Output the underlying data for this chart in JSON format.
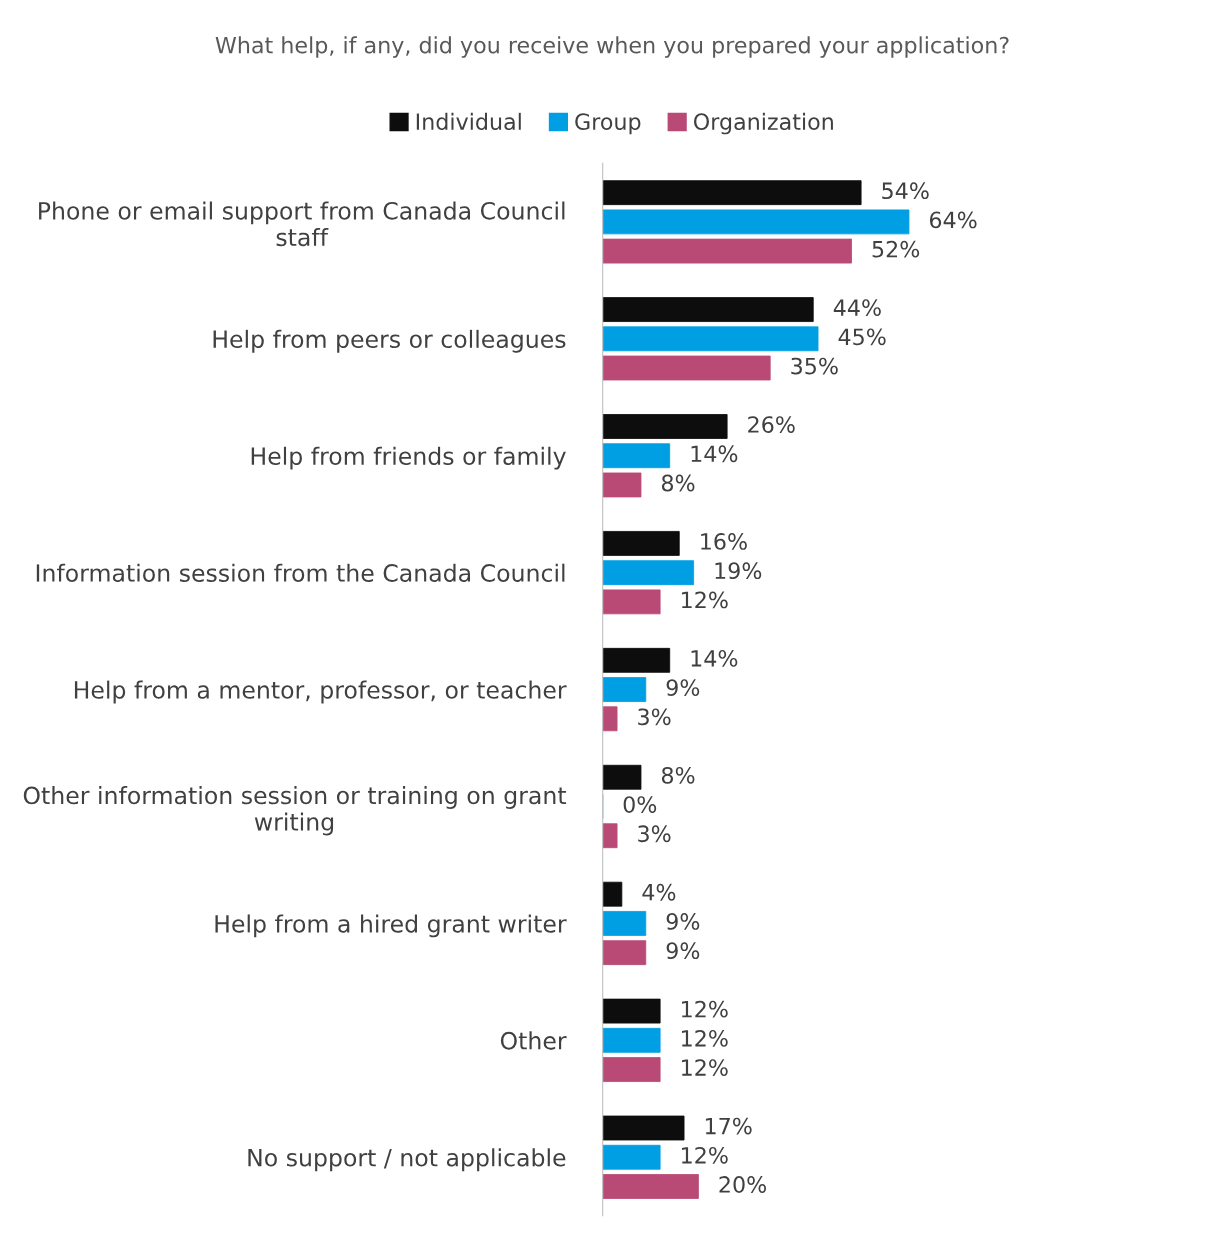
{
  "chart_data": {
    "type": "bar",
    "orientation": "horizontal",
    "title": "What help, if any, did you receive when you prepared your application?",
    "categories": [
      "Phone or email support from Canada Council staff",
      "Help from peers or colleagues",
      "Help from friends or family",
      "Information session from the Canada Council",
      "Help from a mentor, professor, or teacher",
      "Other information session or training on grant writing",
      "Help from a hired grant writer",
      "Other",
      "No support / not applicable"
    ],
    "series": [
      {
        "name": "Individual",
        "color": "#0d0d0d",
        "values": [
          54,
          44,
          26,
          16,
          14,
          8,
          4,
          12,
          17
        ],
        "value_labels": [
          "54%",
          "44%",
          "26%",
          "16%",
          "14%",
          "8%",
          "4%",
          "12%",
          "17%"
        ]
      },
      {
        "name": "Group",
        "color": "#009fe3",
        "values": [
          64,
          45,
          14,
          19,
          9,
          0,
          9,
          12,
          12
        ],
        "value_labels": [
          "64%",
          "45%",
          "14%",
          "19%",
          "9%",
          "0%",
          "9%",
          "12%",
          "12%"
        ]
      },
      {
        "name": "Organization",
        "color": "#b94a76",
        "values": [
          52,
          35,
          8,
          12,
          3,
          3,
          9,
          12,
          20
        ],
        "value_labels": [
          "52%",
          "35%",
          "8%",
          "12%",
          "3%",
          "3%",
          "9%",
          "12%",
          "20%"
        ]
      }
    ],
    "legend": "top"
  }
}
